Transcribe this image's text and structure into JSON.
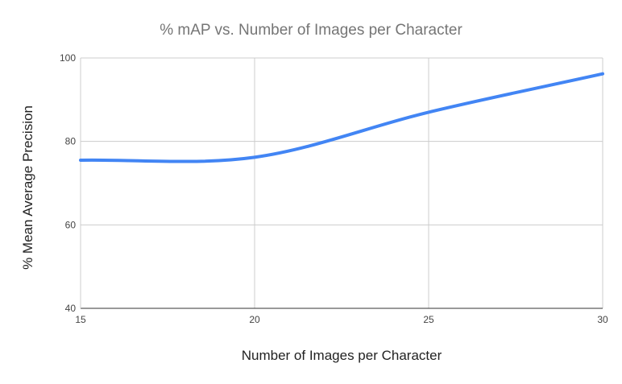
{
  "chart_data": {
    "type": "line",
    "title": "% mAP vs. Number of Images per Character",
    "xlabel": "Number of Images per Character",
    "ylabel": "% Mean Average Precision",
    "xlim": [
      15,
      30
    ],
    "ylim": [
      40,
      100
    ],
    "x_ticks": [
      "15",
      "20",
      "25",
      "30"
    ],
    "y_ticks": [
      "100",
      "80",
      "60",
      "40"
    ],
    "grid": true,
    "legend": "none",
    "series": [
      {
        "color": "#4285F4",
        "x": [
          15,
          20,
          25,
          30
        ],
        "y": [
          75.5,
          76.2,
          87.0,
          96.2
        ]
      }
    ]
  }
}
